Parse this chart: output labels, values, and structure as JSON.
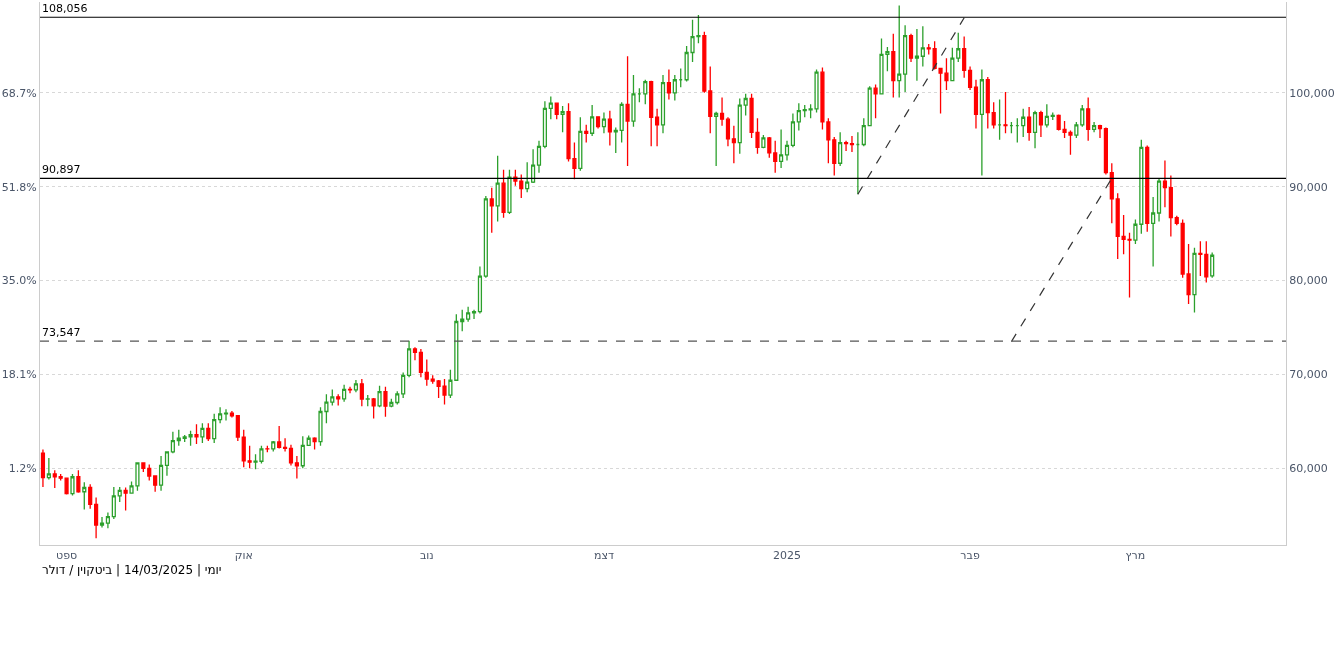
{
  "chart_data": {
    "type": "candlestick",
    "annotations": [
      "יומי | 14/03/2025 | ביטקוין / דולר"
    ],
    "categories": [
      null,
      null,
      null,
      null,
      "ספט",
      null,
      null,
      null,
      null,
      null,
      null,
      null,
      null,
      null,
      null,
      null,
      null,
      null,
      null,
      null,
      null,
      null,
      null,
      null,
      null,
      null,
      null,
      null,
      null,
      null,
      null,
      null,
      null,
      null,
      "אוק",
      null,
      null,
      null,
      null,
      null,
      null,
      null,
      null,
      null,
      null,
      null,
      null,
      null,
      null,
      null,
      null,
      null,
      null,
      null,
      null,
      null,
      null,
      null,
      null,
      null,
      null,
      null,
      null,
      null,
      null,
      "נוב",
      null,
      null,
      null,
      null,
      null,
      null,
      null,
      null,
      null,
      null,
      null,
      null,
      null,
      null,
      null,
      null,
      null,
      null,
      null,
      null,
      null,
      null,
      null,
      null,
      null,
      null,
      null,
      null,
      null,
      "דצמ",
      null,
      null,
      null,
      null,
      null,
      null,
      null,
      null,
      null,
      null,
      null,
      null,
      null,
      null,
      null,
      null,
      null,
      null,
      null,
      null,
      null,
      null,
      null,
      null,
      null,
      null,
      null,
      null,
      null,
      null,
      "2025",
      null,
      null,
      null,
      null,
      null,
      null,
      null,
      null,
      null,
      null,
      null,
      null,
      null,
      null,
      null,
      null,
      null,
      null,
      null,
      null,
      null,
      null,
      null,
      null,
      null,
      null,
      null,
      null,
      null,
      null,
      "פבר",
      null,
      null,
      null,
      null,
      null,
      null,
      null,
      null,
      null,
      null,
      null,
      null,
      null,
      null,
      null,
      null,
      null,
      null,
      null,
      null,
      null,
      null,
      null,
      null,
      null,
      null,
      null,
      "מרץ",
      null,
      null,
      null,
      null,
      null,
      null,
      null,
      null,
      null,
      null,
      null,
      null,
      null,
      null,
      null,
      null,
      null,
      null,
      null,
      null,
      null,
      null,
      null,
      null,
      null
    ],
    "ohlc": [
      [
        61600,
        62000,
        58000,
        59000
      ],
      [
        59000,
        61100,
        58800,
        59400
      ],
      [
        59400,
        59800,
        57900,
        59100
      ],
      [
        59100,
        59400,
        58700,
        58950
      ],
      [
        58950,
        59000,
        57200,
        57300
      ],
      [
        57300,
        59400,
        57100,
        59100
      ],
      [
        59100,
        59800,
        57400,
        57500
      ],
      [
        57500,
        58500,
        55600,
        57950
      ],
      [
        57950,
        58300,
        55700,
        56150
      ],
      [
        56150,
        56900,
        52550,
        53950
      ],
      [
        53950,
        54800,
        53700,
        54150
      ],
      [
        54150,
        55300,
        53600,
        54850
      ],
      [
        54850,
        58000,
        54600,
        57050
      ],
      [
        57050,
        58000,
        56400,
        57650
      ],
      [
        57650,
        57950,
        55500,
        57350
      ],
      [
        57350,
        58600,
        57300,
        58130
      ],
      [
        58130,
        60650,
        57600,
        60570
      ],
      [
        60570,
        60650,
        59600,
        60000
      ],
      [
        60000,
        60400,
        58700,
        59180
      ],
      [
        59180,
        59200,
        57500,
        58200
      ],
      [
        58200,
        61300,
        57600,
        60300
      ],
      [
        60300,
        61800,
        59200,
        61750
      ],
      [
        61750,
        63900,
        61600,
        62950
      ],
      [
        62950,
        64100,
        62400,
        63200
      ],
      [
        63200,
        63550,
        62800,
        63350
      ],
      [
        63350,
        64000,
        62400,
        63580
      ],
      [
        63580,
        64700,
        62600,
        63340
      ],
      [
        63340,
        64800,
        62700,
        64260
      ],
      [
        64260,
        64800,
        62900,
        63150
      ],
      [
        63150,
        65800,
        62700,
        65180
      ],
      [
        65180,
        66500,
        64800,
        65790
      ],
      [
        65790,
        66300,
        65100,
        65880
      ],
      [
        65880,
        66100,
        65400,
        65600
      ],
      [
        65600,
        65600,
        62900,
        63330
      ],
      [
        63330,
        64100,
        60100,
        60800
      ],
      [
        60800,
        62400,
        60000,
        60650
      ],
      [
        60650,
        61500,
        59900,
        60750
      ],
      [
        60750,
        62400,
        60500,
        62070
      ],
      [
        62070,
        62400,
        61700,
        62060
      ],
      [
        62060,
        62900,
        61800,
        62810
      ],
      [
        62810,
        64500,
        62100,
        62220
      ],
      [
        62220,
        63200,
        61800,
        62130
      ],
      [
        62130,
        62500,
        60300,
        60580
      ],
      [
        60580,
        61300,
        58900,
        60270
      ],
      [
        60270,
        63400,
        60000,
        62450
      ],
      [
        62450,
        63500,
        62400,
        63200
      ],
      [
        63200,
        63300,
        62000,
        62850
      ],
      [
        62850,
        66500,
        62400,
        66050
      ],
      [
        66050,
        67900,
        64800,
        67040
      ],
      [
        67040,
        68400,
        66700,
        67610
      ],
      [
        67610,
        67900,
        66700,
        67400
      ],
      [
        67400,
        68900,
        67100,
        68410
      ],
      [
        68410,
        68700,
        68000,
        68360
      ],
      [
        68360,
        69400,
        68100,
        69000
      ],
      [
        69000,
        69500,
        66600,
        67370
      ],
      [
        67370,
        67800,
        66600,
        67380
      ],
      [
        67380,
        67500,
        65300,
        66650
      ],
      [
        66650,
        68800,
        66500,
        68170
      ],
      [
        68170,
        68700,
        65500,
        66620
      ],
      [
        66620,
        67400,
        66500,
        67010
      ],
      [
        67010,
        68200,
        66800,
        67930
      ],
      [
        67930,
        70200,
        67500,
        69900
      ],
      [
        69900,
        73600,
        69700,
        72720
      ],
      [
        72720,
        72900,
        71500,
        72340
      ],
      [
        72340,
        72700,
        69700,
        70220
      ],
      [
        70220,
        71600,
        68800,
        69490
      ],
      [
        69490,
        69900,
        69000,
        69300
      ],
      [
        69300,
        69400,
        67500,
        68740
      ],
      [
        68740,
        69500,
        66800,
        67800
      ],
      [
        67800,
        70500,
        67500,
        69380
      ],
      [
        69380,
        76400,
        69300,
        75640
      ],
      [
        75640,
        76900,
        74600,
        75900
      ],
      [
        75900,
        77200,
        75600,
        76550
      ],
      [
        76550,
        76900,
        75900,
        76700
      ],
      [
        76700,
        81500,
        76500,
        80470
      ],
      [
        80470,
        89000,
        80300,
        88700
      ],
      [
        88700,
        89900,
        85100,
        87950
      ],
      [
        87950,
        93300,
        86300,
        90380
      ],
      [
        90380,
        91800,
        86700,
        87270
      ],
      [
        87270,
        91800,
        87100,
        91030
      ],
      [
        91030,
        91800,
        90100,
        90600
      ],
      [
        90600,
        91300,
        88800,
        89800
      ],
      [
        89800,
        92600,
        89400,
        90500
      ],
      [
        90500,
        94000,
        90400,
        92300
      ],
      [
        92300,
        94900,
        91500,
        94290
      ],
      [
        94290,
        99100,
        94100,
        98340
      ],
      [
        98340,
        99600,
        97200,
        98900
      ],
      [
        98900,
        98900,
        97200,
        97700
      ],
      [
        97700,
        98600,
        95800,
        98000
      ],
      [
        98000,
        98900,
        92700,
        93000
      ],
      [
        93000,
        94700,
        90800,
        91950
      ],
      [
        91950,
        97400,
        91700,
        95900
      ],
      [
        95900,
        96600,
        94700,
        95700
      ],
      [
        95700,
        98700,
        95400,
        97450
      ],
      [
        97450,
        97500,
        96200,
        96400
      ],
      [
        96400,
        97900,
        95700,
        97200
      ],
      [
        97200,
        98100,
        94400,
        95850
      ],
      [
        95850,
        96300,
        93600,
        96000
      ],
      [
        96000,
        99000,
        94700,
        98770
      ],
      [
        98770,
        103900,
        92200,
        97000
      ],
      [
        97000,
        101900,
        96400,
        99900
      ],
      [
        99900,
        100500,
        99000,
        99900
      ],
      [
        99900,
        101400,
        98800,
        101200
      ],
      [
        101200,
        101300,
        94300,
        97400
      ],
      [
        97400,
        98300,
        94300,
        96600
      ],
      [
        96600,
        101900,
        95700,
        101100
      ],
      [
        101100,
        102500,
        99300,
        100000
      ],
      [
        100000,
        101900,
        99200,
        101400
      ],
      [
        101400,
        102600,
        100600,
        101400
      ],
      [
        101400,
        105000,
        101200,
        104300
      ],
      [
        104300,
        107800,
        103300,
        106000
      ],
      [
        106000,
        108300,
        105300,
        106100
      ],
      [
        106100,
        106500,
        100000,
        100200
      ],
      [
        100200,
        102800,
        95700,
        97500
      ],
      [
        97500,
        98000,
        92200,
        97800
      ],
      [
        97800,
        99500,
        96500,
        97200
      ],
      [
        97200,
        97400,
        94300,
        95100
      ],
      [
        95100,
        96500,
        92500,
        94700
      ],
      [
        94700,
        99400,
        93500,
        98700
      ],
      [
        98700,
        99900,
        97600,
        99400
      ],
      [
        99400,
        99900,
        95200,
        95800
      ],
      [
        95800,
        97300,
        93500,
        94200
      ],
      [
        94200,
        95500,
        94100,
        95200
      ],
      [
        95200,
        95300,
        93100,
        93600
      ],
      [
        93600,
        94900,
        91500,
        92700
      ],
      [
        92700,
        96100,
        92000,
        93400
      ],
      [
        93400,
        94900,
        92800,
        94400
      ],
      [
        94400,
        97800,
        94200,
        96900
      ],
      [
        96900,
        98900,
        96000,
        98100
      ],
      [
        98100,
        98700,
        97400,
        98200
      ],
      [
        98200,
        98800,
        97300,
        98300
      ],
      [
        98300,
        102500,
        97900,
        102200
      ],
      [
        102200,
        102700,
        96100,
        96900
      ],
      [
        96900,
        97300,
        92500,
        95000
      ],
      [
        95000,
        95300,
        91200,
        92500
      ],
      [
        92500,
        95800,
        92200,
        94700
      ],
      [
        94700,
        94900,
        93800,
        94600
      ],
      [
        94600,
        95400,
        93700,
        94500
      ],
      [
        94500,
        95800,
        89200,
        94500
      ],
      [
        94500,
        97300,
        94300,
        96500
      ],
      [
        96500,
        100700,
        96500,
        100500
      ],
      [
        100500,
        100900,
        97300,
        99900
      ],
      [
        99900,
        105800,
        99900,
        104100
      ],
      [
        104100,
        104900,
        102300,
        104400
      ],
      [
        104400,
        106300,
        99500,
        101300
      ],
      [
        101300,
        109300,
        99500,
        102000
      ],
      [
        102000,
        107200,
        100100,
        106100
      ],
      [
        106100,
        106300,
        103300,
        103700
      ],
      [
        103700,
        106800,
        101300,
        103900
      ],
      [
        103900,
        107100,
        102800,
        104800
      ],
      [
        104800,
        105200,
        104100,
        104700
      ],
      [
        104700,
        105500,
        102500,
        102600
      ],
      [
        102600,
        102600,
        97800,
        102100
      ],
      [
        102100,
        103700,
        100300,
        101300
      ],
      [
        101300,
        104800,
        101300,
        103700
      ],
      [
        103700,
        106400,
        103300,
        104700
      ],
      [
        104700,
        106000,
        101600,
        102400
      ],
      [
        102400,
        102800,
        100300,
        100600
      ],
      [
        100600,
        101400,
        96200,
        97700
      ],
      [
        97700,
        102500,
        91200,
        101400
      ],
      [
        101400,
        101700,
        96200,
        97900
      ],
      [
        97900,
        99000,
        96200,
        96600
      ],
      [
        96600,
        99300,
        95000,
        96600
      ],
      [
        96600,
        100100,
        95700,
        96500
      ],
      [
        96500,
        96900,
        95700,
        96500
      ],
      [
        96500,
        97300,
        94700,
        96500
      ],
      [
        96500,
        98300,
        95300,
        97400
      ],
      [
        97400,
        98500,
        94900,
        95800
      ],
      [
        95800,
        98100,
        94100,
        97900
      ],
      [
        97900,
        98100,
        95300,
        96600
      ],
      [
        96600,
        98800,
        96300,
        97500
      ],
      [
        97500,
        97900,
        97100,
        97600
      ],
      [
        97600,
        97700,
        96000,
        96100
      ],
      [
        96100,
        97000,
        95200,
        95800
      ],
      [
        95800,
        96000,
        93400,
        95500
      ],
      [
        95500,
        96900,
        95200,
        96600
      ],
      [
        96600,
        98700,
        96400,
        98300
      ],
      [
        98300,
        99500,
        94900,
        96100
      ],
      [
        96100,
        96900,
        95800,
        96500
      ],
      [
        96500,
        96600,
        95200,
        96200
      ],
      [
        96200,
        96300,
        91300,
        91500
      ],
      [
        91500,
        92500,
        86100,
        88700
      ],
      [
        88700,
        89300,
        82300,
        84700
      ],
      [
        84700,
        87000,
        82800,
        84400
      ],
      [
        84400,
        85100,
        78200,
        84300
      ],
      [
        84300,
        86500,
        83900,
        86000
      ],
      [
        86000,
        95000,
        85000,
        94200
      ],
      [
        94200,
        94400,
        85200,
        86100
      ],
      [
        86100,
        88900,
        81500,
        87200
      ],
      [
        87200,
        90900,
        86300,
        90600
      ],
      [
        90600,
        92800,
        87800,
        89900
      ],
      [
        89900,
        91200,
        84700,
        86700
      ],
      [
        86700,
        86900,
        85900,
        86100
      ],
      [
        86100,
        86500,
        80300,
        80700
      ],
      [
        80700,
        83900,
        77500,
        78500
      ],
      [
        78500,
        83500,
        76600,
        82900
      ],
      [
        82900,
        84200,
        80500,
        82800
      ],
      [
        82800,
        84200,
        79800,
        80400
      ],
      [
        80500,
        83000,
        80300,
        82700
      ],
      null,
      null,
      null,
      null,
      null,
      null,
      null,
      null,
      null,
      null,
      null,
      null
    ],
    "colors": [
      "#ff0000",
      "#2ca02c",
      "#ff0000",
      "#ff0000",
      "#ff0000",
      "#2ca02c",
      "#ff0000",
      "#2ca02c",
      "#ff0000",
      "#ff0000",
      "#2ca02c",
      "#2ca02c",
      "#2ca02c",
      "#2ca02c",
      "#ff0000",
      "#2ca02c",
      "#2ca02c",
      "#ff0000",
      "#ff0000",
      "#ff0000",
      "#2ca02c",
      "#2ca02c",
      "#2ca02c",
      "#2ca02c",
      "#2ca02c",
      "#2ca02c",
      "#ff0000",
      "#2ca02c",
      "#ff0000",
      "#2ca02c",
      "#2ca02c",
      "#2ca02c",
      "#ff0000",
      "#ff0000",
      "#ff0000",
      "#ff0000",
      "#2ca02c",
      "#2ca02c",
      "#ff0000",
      "#2ca02c",
      "#ff0000",
      "#ff0000",
      "#ff0000",
      "#ff0000",
      "#2ca02c",
      "#2ca02c",
      "#ff0000",
      "#2ca02c",
      "#2ca02c",
      "#2ca02c",
      "#ff0000",
      "#2ca02c",
      "#ff0000",
      "#2ca02c",
      "#ff0000",
      "#2ca02c",
      "#ff0000",
      "#2ca02c",
      "#ff0000",
      "#2ca02c",
      "#2ca02c",
      "#2ca02c",
      "#2ca02c",
      "#ff0000",
      "#ff0000",
      "#ff0000",
      "#ff0000",
      "#ff0000",
      "#ff0000",
      "#2ca02c",
      "#2ca02c",
      "#2ca02c",
      "#2ca02c",
      "#2ca02c",
      "#2ca02c",
      "#2ca02c",
      "#ff0000",
      "#2ca02c",
      "#ff0000",
      "#2ca02c",
      "#ff0000",
      "#ff0000",
      "#2ca02c",
      "#2ca02c",
      "#2ca02c",
      "#2ca02c",
      "#2ca02c",
      "#ff0000",
      "#2ca02c",
      "#ff0000",
      "#ff0000",
      "#2ca02c",
      "#ff0000",
      "#2ca02c",
      "#ff0000",
      "#2ca02c",
      "#ff0000",
      "#2ca02c",
      "#2ca02c",
      "#ff0000",
      "#2ca02c",
      "#2ca02c",
      "#2ca02c",
      "#ff0000",
      "#ff0000",
      "#2ca02c",
      "#ff0000",
      "#2ca02c",
      "#2ca02c",
      "#2ca02c",
      "#2ca02c",
      "#2ca02c",
      "#ff0000",
      "#ff0000",
      "#2ca02c",
      "#ff0000",
      "#ff0000",
      "#ff0000",
      "#2ca02c",
      "#2ca02c",
      "#ff0000",
      "#ff0000",
      "#2ca02c",
      "#ff0000",
      "#ff0000",
      "#2ca02c",
      "#2ca02c",
      "#2ca02c",
      "#2ca02c",
      "#2ca02c",
      "#2ca02c",
      "#2ca02c",
      "#ff0000",
      "#ff0000",
      "#ff0000",
      "#2ca02c",
      "#ff0000",
      "#ff0000",
      "#2ca02c",
      "#2ca02c",
      "#2ca02c",
      "#ff0000",
      "#2ca02c",
      "#2ca02c",
      "#ff0000",
      "#2ca02c",
      "#2ca02c",
      "#ff0000",
      "#2ca02c",
      "#2ca02c",
      "#ff0000",
      "#ff0000",
      "#ff0000",
      "#ff0000",
      "#2ca02c",
      "#2ca02c",
      "#ff0000",
      "#ff0000",
      "#ff0000",
      "#2ca02c",
      "#ff0000",
      "#ff0000",
      "#2ca02c",
      "#ff0000",
      "#2ca02c",
      "#2ca02c",
      "#2ca02c",
      "#ff0000",
      "#2ca02c",
      "#ff0000",
      "#2ca02c",
      "#2ca02c",
      "#ff0000",
      "#ff0000",
      "#ff0000",
      "#2ca02c",
      "#2ca02c",
      "#ff0000",
      "#2ca02c",
      "#ff0000",
      "#ff0000",
      "#ff0000",
      "#ff0000",
      "#ff0000",
      "#ff0000",
      "#2ca02c",
      "#2ca02c",
      "#ff0000",
      "#2ca02c",
      "#2ca02c",
      "#ff0000",
      "#ff0000",
      "#ff0000",
      "#ff0000",
      "#ff0000",
      "#2ca02c",
      "#ff0000",
      "#ff0000",
      "#2ca02c",
      null,
      null,
      null,
      null,
      null,
      null,
      null,
      null,
      null,
      null,
      null,
      null
    ],
    "series": [
      {
        "type": "line",
        "values": [
          null,
          null,
          null,
          null,
          null,
          null,
          null,
          null,
          null,
          null,
          null,
          null,
          null,
          null,
          null,
          null,
          null,
          null,
          null,
          null,
          null,
          null,
          null,
          null,
          null,
          null,
          null,
          null,
          null,
          null,
          null,
          null,
          null,
          null,
          null,
          null,
          null,
          null,
          null,
          null,
          null,
          null,
          null,
          null,
          null,
          null,
          null,
          null,
          null,
          null,
          null,
          null,
          null,
          null,
          null,
          null,
          null,
          null,
          null,
          null,
          null,
          null,
          null,
          null,
          null,
          null,
          null,
          null,
          null,
          null,
          null,
          null,
          null,
          null,
          null,
          null,
          null,
          null,
          null,
          null,
          null,
          null,
          null,
          null,
          null,
          null,
          null,
          null,
          null,
          null,
          null,
          null,
          null,
          null,
          null,
          null,
          null,
          null,
          null,
          null,
          null,
          null,
          null,
          null,
          null,
          null,
          null,
          null,
          null,
          null,
          null,
          null,
          null,
          null,
          null,
          null,
          null,
          null,
          null,
          null,
          null,
          null,
          null,
          null,
          null,
          null,
          null,
          null,
          null,
          null,
          null,
          null,
          null,
          null,
          null,
          null,
          null,
          null,
          89200,
          null,
          null,
          null,
          null,
          null,
          null,
          null,
          null,
          null,
          null,
          null,
          null,
          null,
          null,
          null,
          null,
          null,
          108000,
          null,
          null,
          null,
          null,
          null,
          null,
          null,
          null,
          null,
          null,
          null,
          null,
          null,
          null,
          null,
          null,
          null,
          null,
          null,
          null,
          null,
          null,
          null,
          null,
          null,
          null,
          null,
          null,
          null,
          null,
          null,
          null,
          null,
          null,
          null,
          null,
          null,
          null,
          null,
          null,
          null,
          null,
          null,
          null,
          null,
          null,
          null,
          null,
          null,
          null,
          null,
          null,
          null,
          null
        ],
        "color": "#333333",
        "line_style": "dashed"
      },
      {
        "type": "line",
        "values": [
          null,
          null,
          null,
          null,
          null,
          null,
          null,
          null,
          null,
          null,
          null,
          null,
          null,
          null,
          null,
          null,
          null,
          null,
          null,
          null,
          null,
          null,
          null,
          null,
          null,
          null,
          null,
          null,
          null,
          null,
          null,
          null,
          null,
          null,
          null,
          null,
          null,
          null,
          null,
          null,
          null,
          null,
          null,
          null,
          null,
          null,
          null,
          null,
          null,
          null,
          null,
          null,
          null,
          null,
          null,
          null,
          null,
          null,
          null,
          null,
          null,
          null,
          null,
          null,
          null,
          null,
          null,
          null,
          null,
          null,
          null,
          null,
          null,
          null,
          null,
          null,
          null,
          null,
          null,
          null,
          null,
          null,
          null,
          null,
          null,
          null,
          null,
          null,
          null,
          null,
          null,
          null,
          null,
          null,
          null,
          null,
          null,
          null,
          null,
          null,
          null,
          null,
          null,
          null,
          null,
          null,
          null,
          null,
          null,
          null,
          null,
          null,
          null,
          null,
          null,
          null,
          null,
          null,
          null,
          null,
          null,
          null,
          null,
          null,
          null,
          null,
          null,
          null,
          null,
          null,
          null,
          null,
          null,
          null,
          null,
          null,
          null,
          null,
          null,
          null,
          null,
          null,
          null,
          null,
          null,
          null,
          null,
          null,
          null,
          null,
          null,
          null,
          null,
          null,
          null,
          null,
          null,
          null,
          null,
          null,
          null,
          null,
          null,
          null,
          73500,
          null,
          null,
          null,
          null,
          null,
          null,
          null,
          null,
          null,
          null,
          null,
          null,
          null,
          null,
          null,
          null,
          90900,
          null,
          null,
          null,
          null,
          null,
          null,
          null,
          null,
          null,
          null,
          null,
          null,
          null,
          null,
          null,
          null,
          null,
          null,
          null,
          null,
          null,
          null,
          null,
          null,
          null,
          null,
          null,
          null,
          null
        ],
        "color": "#333333",
        "line_style": "dashed"
      }
    ],
    "ylim": [
      51826,
      109682
    ],
    "yticks": [
      {
        "value": 60000,
        "label": "60,000"
      },
      {
        "value": 70000,
        "label": "70,000"
      },
      {
        "value": 80000,
        "label": "80,000"
      },
      {
        "value": 90000,
        "label": "90,000"
      },
      {
        "value": 100000,
        "label": "100,000"
      }
    ],
    "y2lim": [
      -12.59,
      85.0
    ],
    "y2ticks": [
      {
        "value": 1.2,
        "label": "1.2%"
      },
      {
        "value": 18.1,
        "label": "18.1%"
      },
      {
        "value": 35.0,
        "label": "35.0%"
      },
      {
        "value": 51.8,
        "label": "51.8%"
      },
      {
        "value": 68.7,
        "label": "68.7%"
      }
    ],
    "ref_lines": [
      {
        "axis": "y",
        "value": 108056,
        "label": "108,056",
        "color": "#000000",
        "line_style": "solid"
      },
      {
        "axis": "y",
        "value": 90897,
        "label": "90,897",
        "color": "#000000",
        "line_style": "solid"
      },
      {
        "axis": "y",
        "value": 73547,
        "label": "73,547",
        "color": "#555555",
        "line_style": "dashed"
      }
    ],
    "grid": "y"
  }
}
